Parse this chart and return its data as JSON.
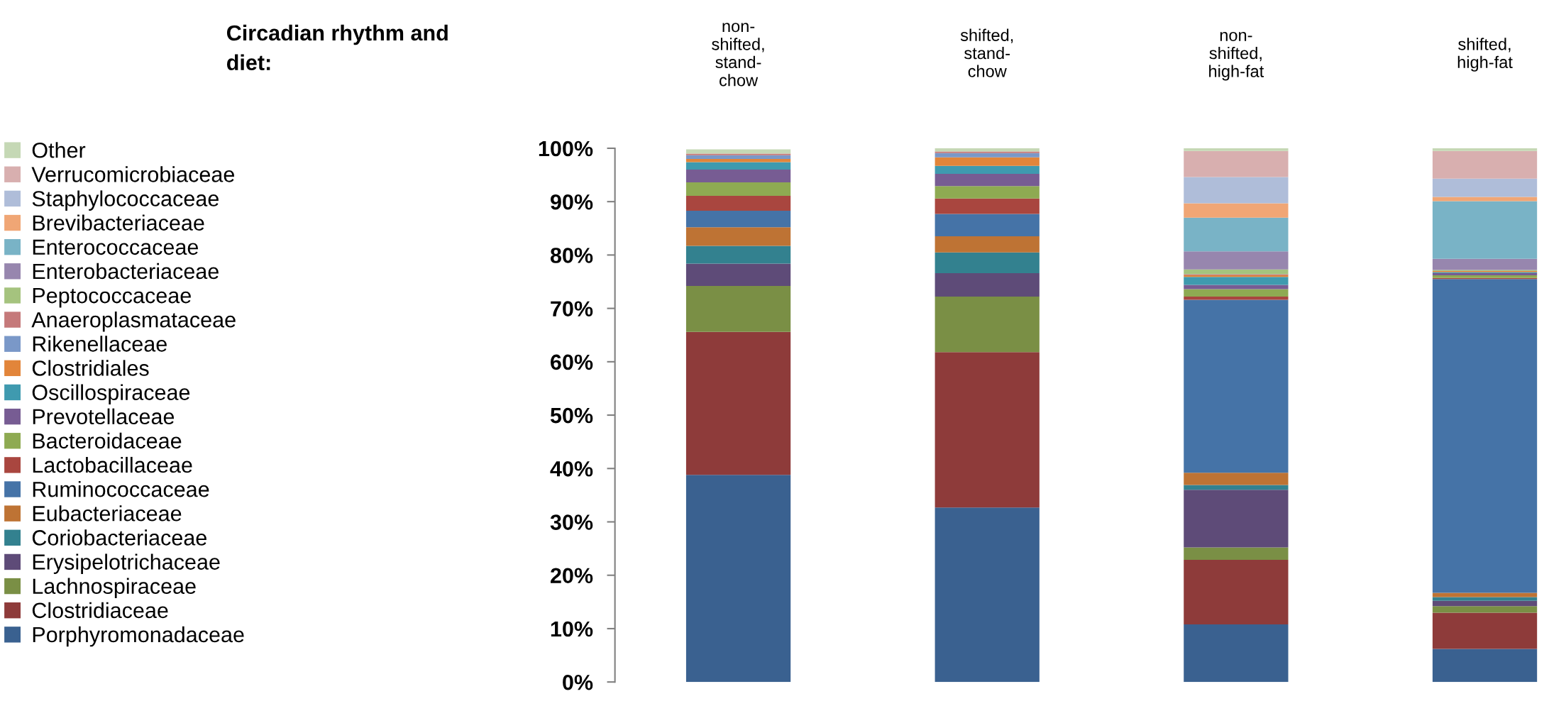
{
  "chart_data": {
    "type": "bar",
    "stacked": true,
    "title": "Circadian rhythm and\ndiet:",
    "categories": [
      "non-\nshifted,\nstand-\nchow",
      "shifted,\nstand-\nchow",
      "non-\nshifted,\nhigh-fat",
      "shifted,\nhigh-fat"
    ],
    "ylim": [
      0,
      100
    ],
    "yticks": [
      {
        "value": 0,
        "label": "0%"
      },
      {
        "value": 10,
        "label": "10%"
      },
      {
        "value": 20,
        "label": "20%"
      },
      {
        "value": 30,
        "label": "30%"
      },
      {
        "value": 40,
        "label": "40%"
      },
      {
        "value": 50,
        "label": "50%"
      },
      {
        "value": 60,
        "label": "60%"
      },
      {
        "value": 70,
        "label": "70%"
      },
      {
        "value": 80,
        "label": "80%"
      },
      {
        "value": 90,
        "label": "90%"
      },
      {
        "value": 100,
        "label": "100%"
      }
    ],
    "grid": false,
    "legend": "left",
    "series": [
      {
        "name": "Porphyromonadaceae",
        "color": "#3a6190",
        "values": [
          38.8,
          32.7,
          10.8,
          6.2
        ]
      },
      {
        "name": "Clostridiaceae",
        "color": "#8e3b3a",
        "values": [
          26.8,
          29.1,
          12.1,
          6.8
        ]
      },
      {
        "name": "Lachnospiraceae",
        "color": "#7a8f45",
        "values": [
          8.6,
          10.4,
          2.3,
          1.2
        ]
      },
      {
        "name": "Erysipelotrichaceae",
        "color": "#5e4b78",
        "values": [
          4.2,
          4.4,
          10.8,
          1.0
        ]
      },
      {
        "name": "Coriobacteriaceae",
        "color": "#33818f",
        "values": [
          3.3,
          3.9,
          0.9,
          0.7
        ]
      },
      {
        "name": "Eubacteriaceae",
        "color": "#be7334",
        "values": [
          3.5,
          3.0,
          2.3,
          0.8
        ]
      },
      {
        "name": "Ruminococcaceae",
        "color": "#4573a7",
        "values": [
          3.1,
          4.2,
          32.4,
          58.8
        ]
      },
      {
        "name": "Lactobacillaceae",
        "color": "#a9463f",
        "values": [
          2.8,
          2.9,
          0.6,
          0.2
        ]
      },
      {
        "name": "Bacteroidaceae",
        "color": "#8eaa52",
        "values": [
          2.5,
          2.3,
          1.4,
          0.5
        ]
      },
      {
        "name": "Prevotellaceae",
        "color": "#775c93",
        "values": [
          2.4,
          2.3,
          0.8,
          0.4
        ]
      },
      {
        "name": "Oscillospiraceae",
        "color": "#3f9aaf",
        "values": [
          1.4,
          1.5,
          1.5,
          0.2
        ]
      },
      {
        "name": "Clostridiales",
        "color": "#e2853a",
        "values": [
          0.6,
          1.6,
          0.3,
          0.2
        ]
      },
      {
        "name": "Rikenellaceae",
        "color": "#7a98c8",
        "values": [
          0.7,
          0.8,
          0,
          0
        ]
      },
      {
        "name": "Anaeroplasmataceae",
        "color": "#c5797a",
        "values": [
          0.3,
          0.3,
          0.2,
          0
        ]
      },
      {
        "name": "Peptococcaceae",
        "color": "#a5c37e",
        "values": [
          0,
          0,
          0.9,
          0.2
        ]
      },
      {
        "name": "Enterobacteriaceae",
        "color": "#9786ae",
        "values": [
          0,
          0,
          3.4,
          2.1
        ]
      },
      {
        "name": "Enterococcaceae",
        "color": "#79b3c6",
        "values": [
          0,
          0,
          6.3,
          10.8
        ]
      },
      {
        "name": "Brevibacteriaceae",
        "color": "#f0a675",
        "values": [
          0,
          0,
          2.7,
          0.8
        ]
      },
      {
        "name": "Staphylococcaceae",
        "color": "#afbdd9",
        "values": [
          0,
          0,
          4.9,
          3.4
        ]
      },
      {
        "name": "Verrucomicrobiaceae",
        "color": "#d8afaf",
        "values": [
          null,
          0,
          4.9,
          5.2
        ]
      },
      {
        "name": "Other",
        "color": "#c5d8b5",
        "values": [
          0.8,
          0.6,
          0.5,
          0.5
        ]
      }
    ]
  }
}
